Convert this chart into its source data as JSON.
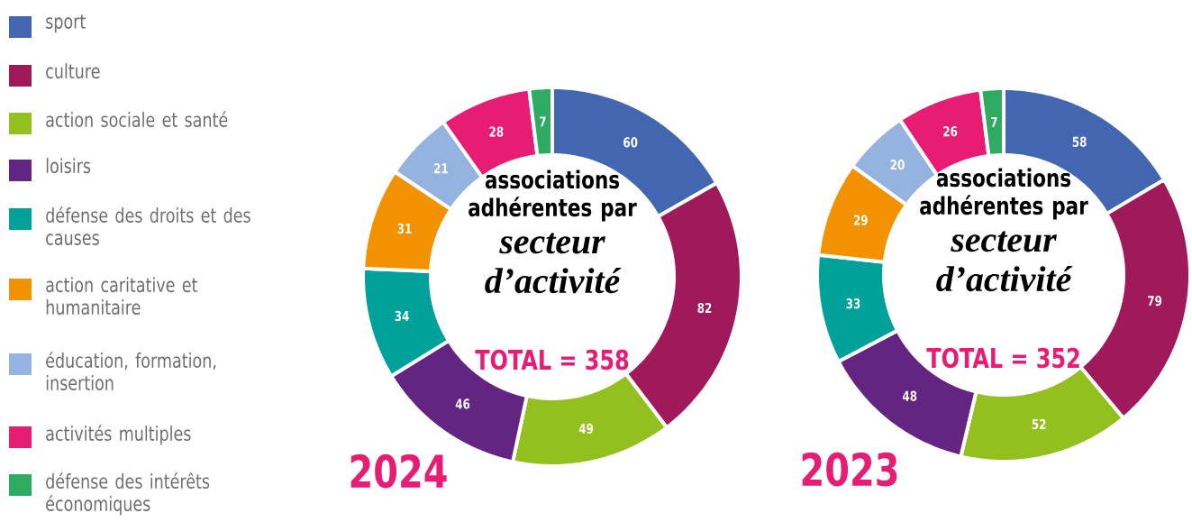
{
  "chart_data": [
    {
      "type": "donut",
      "title": "associations adhérentes par",
      "subtitle": "secteur d’activité",
      "annotations": [
        "TOTAL = 358",
        "2024"
      ],
      "legend": "left",
      "data_labels": true,
      "categories": [
        "sport",
        "culture",
        "action sociale et santé",
        "loisirs",
        "défense des droits et des causes",
        "action caritative et humanitaire",
        "éducation, formation, insertion",
        "activités multiples",
        "défense des intérêts économiques"
      ],
      "values": [
        60,
        82,
        49,
        46,
        34,
        31,
        21,
        28,
        7
      ],
      "colors": [
        "#4267b0",
        "#a0195a",
        "#93c01f",
        "#642482",
        "#00a19a",
        "#f39200",
        "#95b3df",
        "#e71d73",
        "#2eaa62"
      ]
    },
    {
      "type": "donut",
      "title": "associations adhérentes par",
      "subtitle": "secteur d’activité",
      "annotations": [
        "TOTAL = 352",
        "2023"
      ],
      "legend": false,
      "data_labels": true,
      "categories": [
        null,
        null,
        null,
        null,
        null,
        null,
        null,
        null,
        null
      ],
      "values": [
        58,
        79,
        52,
        48,
        33,
        29,
        20,
        26,
        7
      ],
      "colors": [
        "#4267b0",
        "#a0195a",
        "#93c01f",
        "#642482",
        "#00a19a",
        "#f39200",
        "#95b3df",
        "#e71d73",
        "#2eaa62"
      ]
    }
  ]
}
